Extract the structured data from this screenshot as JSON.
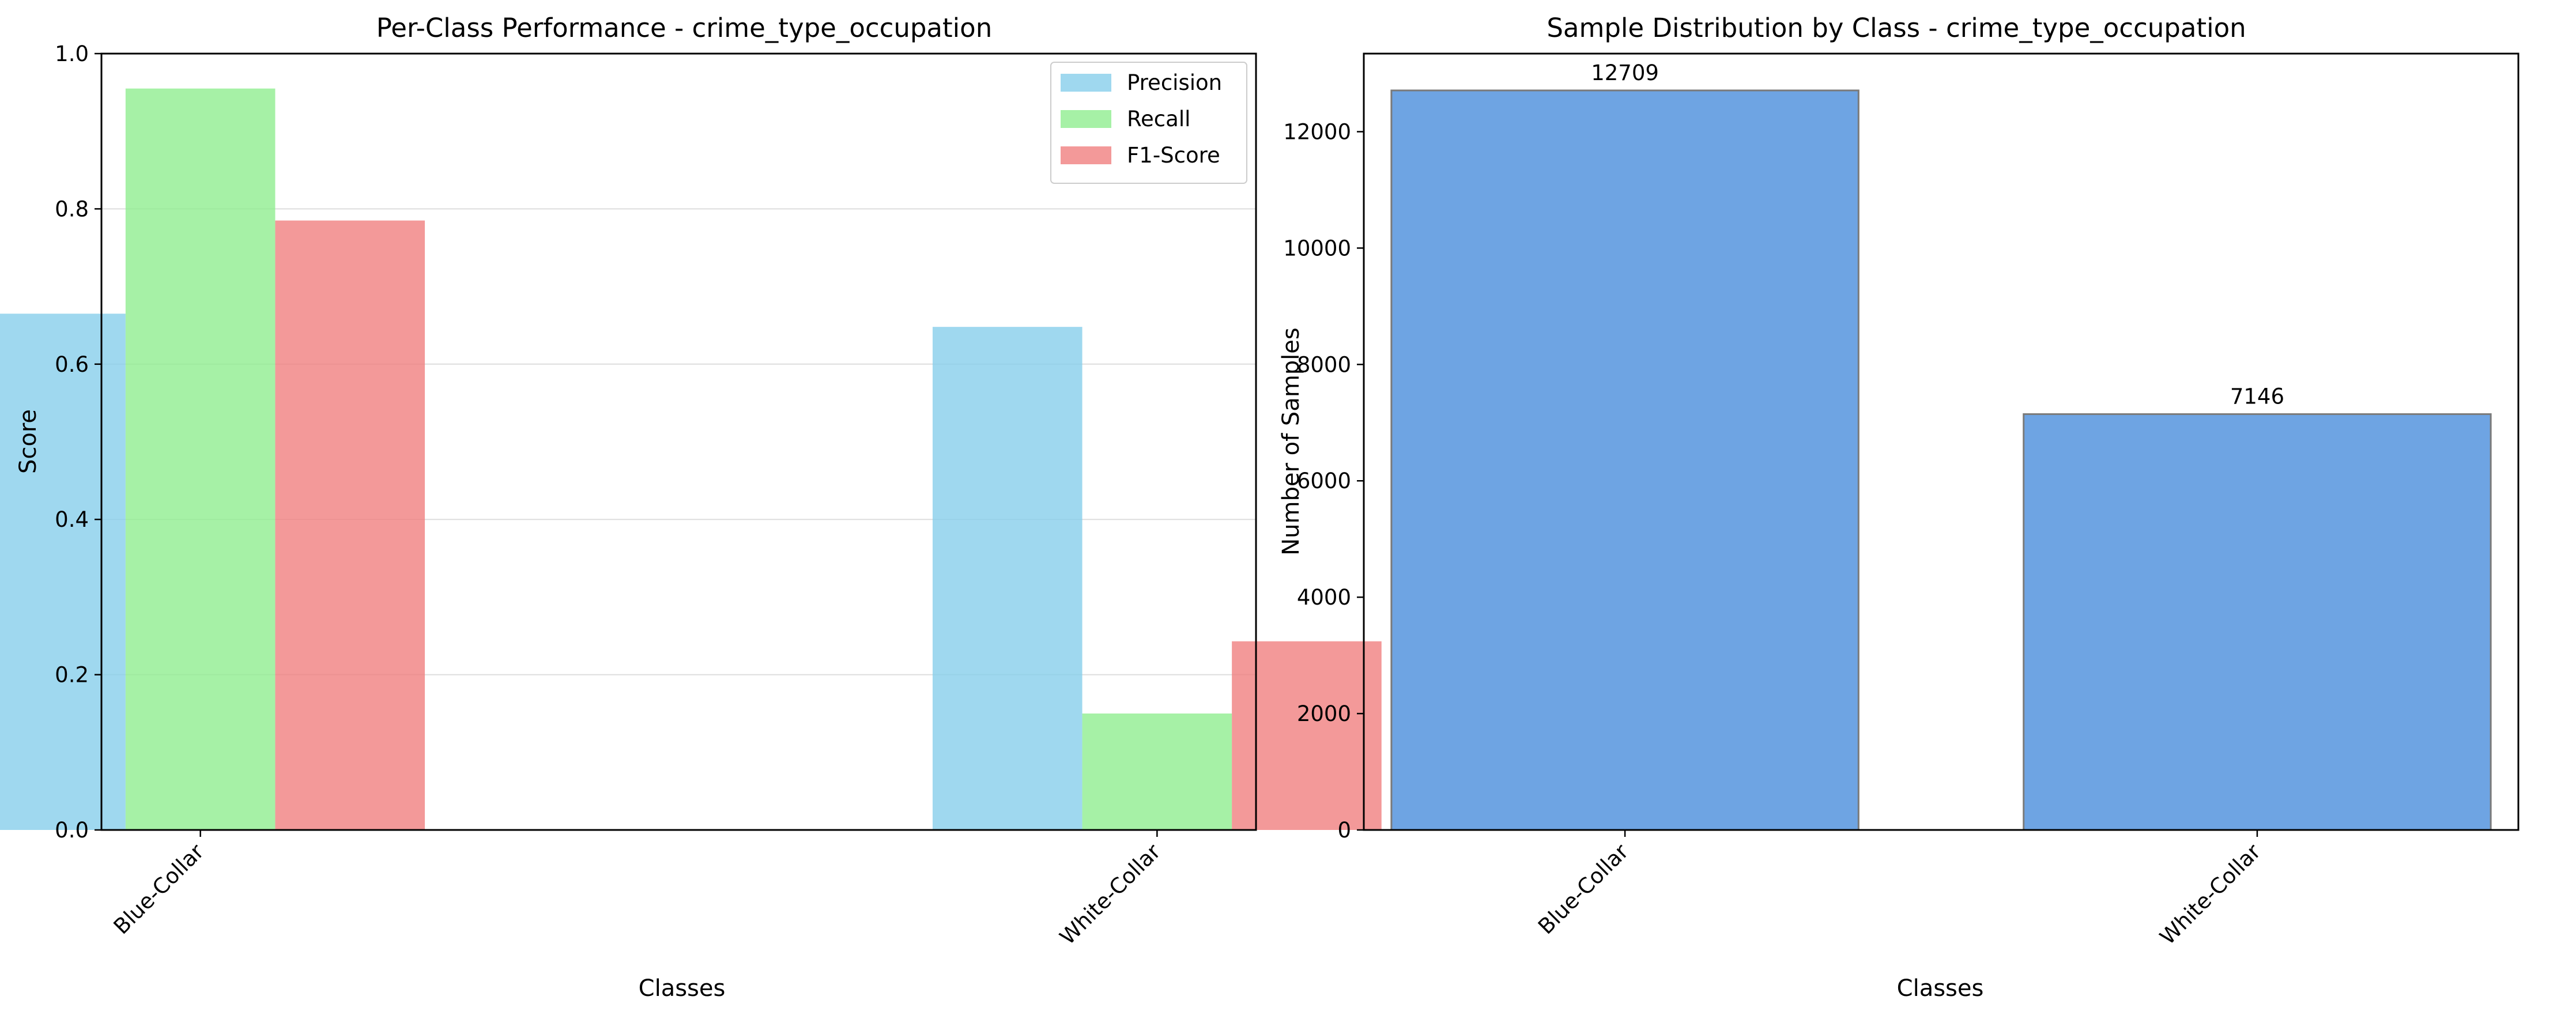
{
  "chart_data": [
    {
      "type": "bar",
      "title": "Per-Class Performance - crime_type_occupation",
      "xlabel": "Classes",
      "ylabel": "Score",
      "categories": [
        "Blue-Collar",
        "White-Collar"
      ],
      "series": [
        {
          "name": "Precision",
          "color": "#87ceeb",
          "values": [
            0.665,
            0.648
          ]
        },
        {
          "name": "Recall",
          "color": "#90ee90",
          "values": [
            0.955,
            0.15
          ]
        },
        {
          "name": "F1-Score",
          "color": "#f08080",
          "values": [
            0.785,
            0.243
          ]
        }
      ],
      "ylim": [
        0,
        1.0
      ],
      "yticks": [
        "0.0",
        "0.2",
        "0.4",
        "0.6",
        "0.8",
        "1.0"
      ],
      "grid": true,
      "legend": "top-right"
    },
    {
      "type": "bar",
      "title": "Sample Distribution by Class - crime_type_occupation",
      "xlabel": "Classes",
      "ylabel": "Number of Samples",
      "categories": [
        "Blue-Collar",
        "White-Collar"
      ],
      "values": [
        12709,
        7146
      ],
      "value_labels": [
        "12709",
        "7146"
      ],
      "color": "#4a8ddc",
      "ylim": [
        0,
        13342
      ],
      "yticks": [
        "0",
        "2000",
        "4000",
        "6000",
        "8000",
        "10000",
        "12000"
      ],
      "grid": false
    }
  ]
}
